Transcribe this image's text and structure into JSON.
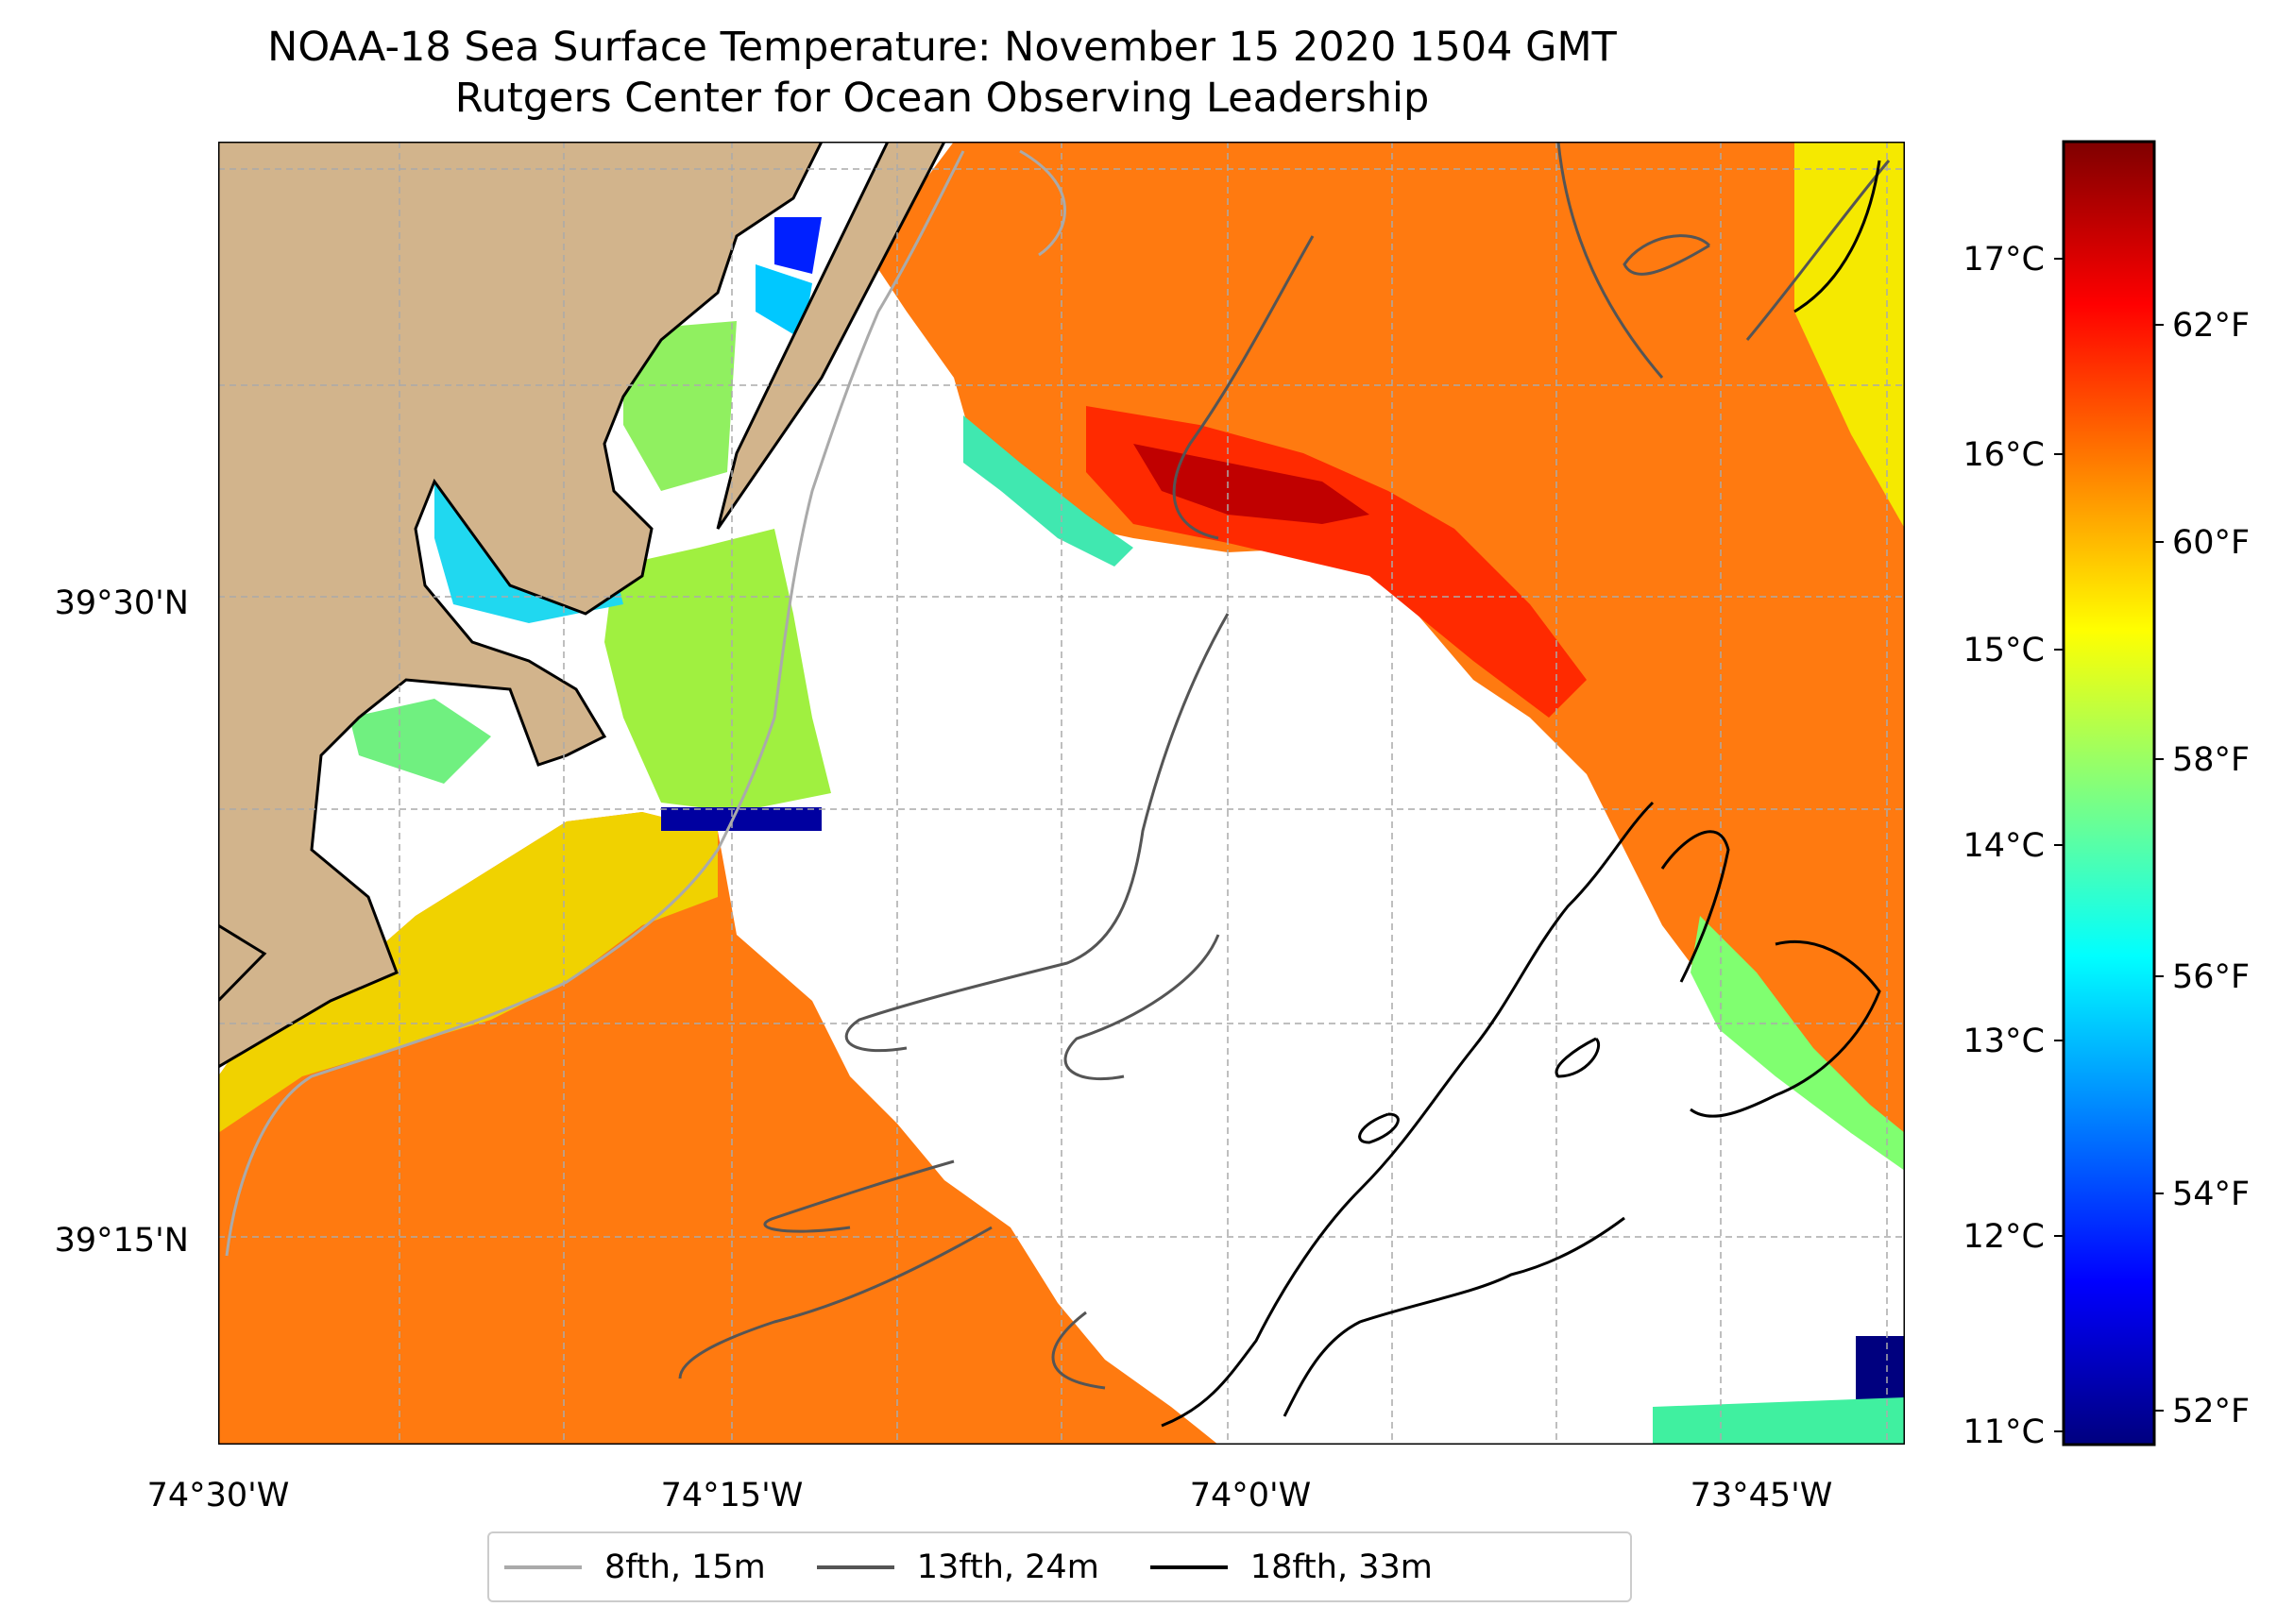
{
  "title": {
    "line1": "NOAA-18 Sea Surface Temperature: November 15 2020 1504 GMT",
    "line2": "Rutgers Center for Ocean Observing Leadership"
  },
  "axes": {
    "lon_ticks": [
      "74°30'W",
      "74°15'W",
      "74°0'W",
      "73°45'W"
    ],
    "lat_ticks": [
      "39°30'N",
      "39°15'N"
    ]
  },
  "colorbar": {
    "celsius_ticks": [
      "11°C",
      "12°C",
      "13°C",
      "14°C",
      "15°C",
      "16°C",
      "17°C"
    ],
    "fahrenheit_ticks": [
      "52°F",
      "54°F",
      "56°F",
      "58°F",
      "60°F",
      "62°F"
    ],
    "colormap": "jet",
    "range_c": [
      10.9,
      17.6
    ]
  },
  "legend": {
    "items": [
      {
        "label": "8fth, 15m",
        "color": "#aaaaaa"
      },
      {
        "label": "13fth, 24m",
        "color": "#555555"
      },
      {
        "label": "18fth, 33m",
        "color": "#000000"
      }
    ]
  },
  "colors": {
    "land": "#d2b48c",
    "coast": "#000000",
    "grid": "#aaaaaa"
  }
}
